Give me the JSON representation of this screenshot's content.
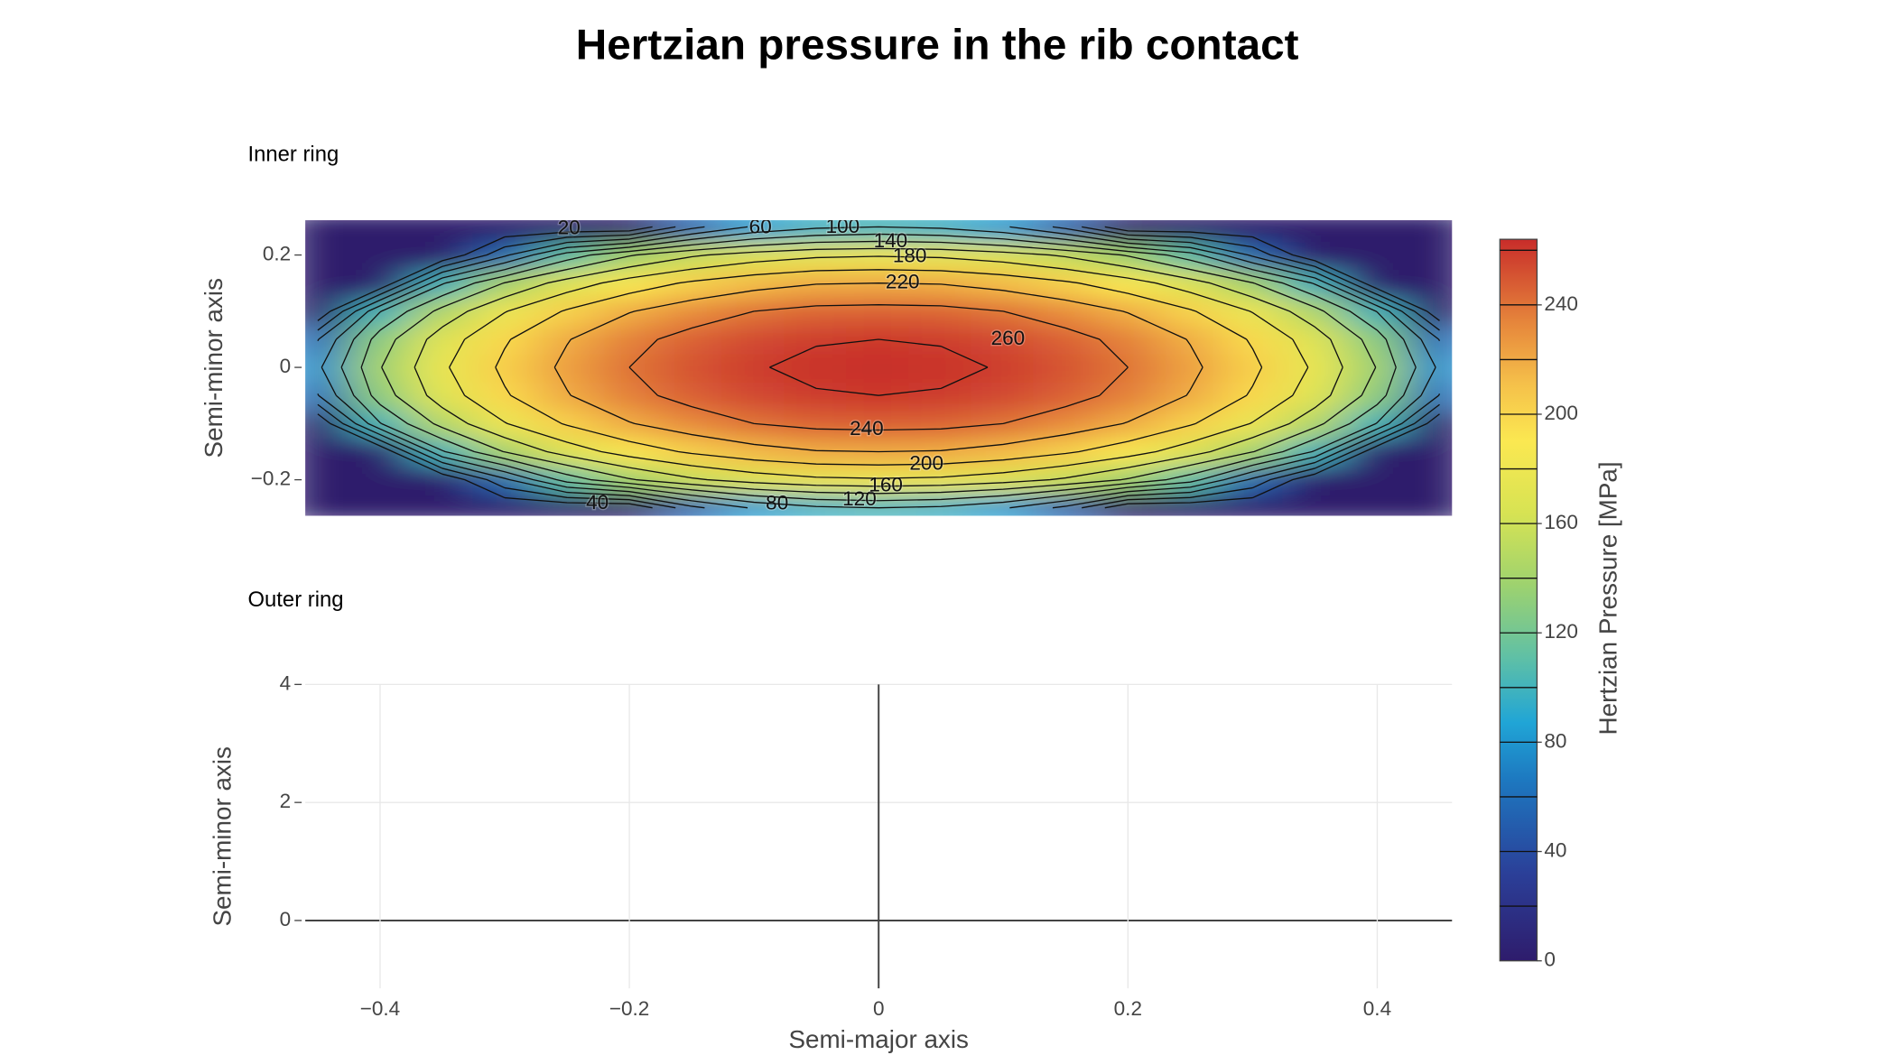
{
  "title": "Hertzian pressure in the rib contact",
  "chart_data": [
    {
      "type": "contour",
      "title": "Inner ring",
      "ylabel": "Semi-minor axis",
      "x": [
        -0.45,
        -0.4,
        -0.35,
        -0.3,
        -0.25,
        -0.2,
        -0.15,
        -0.1,
        -0.05,
        0,
        0.05,
        0.1,
        0.15,
        0.2,
        0.25,
        0.3,
        0.35,
        0.4,
        0.45
      ],
      "y": [
        -0.25,
        -0.2,
        -0.15,
        -0.1,
        -0.05,
        0,
        0.05,
        0.1,
        0.15,
        0.2,
        0.25
      ],
      "z": [
        [
          0,
          0,
          0,
          0,
          0,
          0,
          54,
          83,
          96,
          100,
          96,
          83,
          54,
          0,
          0,
          0,
          0,
          0,
          0
        ],
        [
          0,
          0,
          0,
          56,
          109,
          138,
          157,
          169,
          176,
          178,
          176,
          169,
          157,
          138,
          109,
          56,
          0,
          0,
          0
        ],
        [
          0,
          0,
          98,
          141,
          169,
          189,
          203,
          213,
          219,
          220,
          219,
          213,
          203,
          189,
          169,
          141,
          98,
          0,
          0
        ],
        [
          0,
          99,
          147,
          179,
          202,
          219,
          231,
          240,
          245,
          246,
          245,
          240,
          231,
          219,
          202,
          179,
          147,
          99,
          0
        ],
        [
          59,
          130,
          170,
          198,
          219,
          235,
          246,
          254,
          259,
          260,
          259,
          254,
          246,
          235,
          219,
          198,
          170,
          130,
          59
        ],
        [
          76,
          139,
          177,
          204,
          224,
          240,
          251,
          259,
          263,
          265,
          263,
          259,
          251,
          240,
          224,
          204,
          177,
          139,
          76
        ],
        [
          59,
          130,
          170,
          198,
          219,
          235,
          246,
          254,
          259,
          260,
          259,
          254,
          246,
          235,
          219,
          198,
          170,
          130,
          59
        ],
        [
          0,
          99,
          147,
          179,
          202,
          219,
          231,
          240,
          245,
          246,
          245,
          240,
          231,
          219,
          202,
          179,
          147,
          99,
          0
        ],
        [
          0,
          0,
          98,
          141,
          169,
          189,
          203,
          213,
          219,
          220,
          219,
          213,
          203,
          189,
          169,
          141,
          98,
          0,
          0
        ],
        [
          0,
          0,
          0,
          56,
          109,
          138,
          157,
          169,
          176,
          178,
          176,
          169,
          157,
          138,
          109,
          56,
          0,
          0,
          0
        ],
        [
          0,
          0,
          0,
          0,
          0,
          0,
          54,
          83,
          96,
          100,
          96,
          83,
          54,
          0,
          0,
          0,
          0,
          0,
          0
        ]
      ],
      "contours": {
        "levels": [
          20,
          40,
          60,
          80,
          100,
          120,
          140,
          160,
          180,
          200,
          220,
          240,
          260
        ],
        "color": "#111111"
      },
      "colorscale": [
        [
          0,
          "#2e1c6c"
        ],
        [
          0.12,
          "#2b3f98"
        ],
        [
          0.25,
          "#1d78c0"
        ],
        [
          0.33,
          "#20a5d6"
        ],
        [
          0.42,
          "#5fc0a6"
        ],
        [
          0.52,
          "#9dd26f"
        ],
        [
          0.62,
          "#d7e353"
        ],
        [
          0.72,
          "#fbe851"
        ],
        [
          0.8,
          "#f5c04a"
        ],
        [
          0.88,
          "#e7893c"
        ],
        [
          1,
          "#c82d2a"
        ]
      ],
      "colorbar": {
        "title": "Hertzian Pressure [MPa]",
        "zlim": [
          0,
          264
        ],
        "ticks": [
          0,
          40,
          80,
          120,
          160,
          200,
          240
        ]
      },
      "xlim": [
        -0.46,
        0.46
      ],
      "ylim": [
        -0.264,
        0.262
      ],
      "yticks": [
        {
          "value": -0.2,
          "label": "−0.2"
        },
        0,
        0.2
      ]
    },
    {
      "type": "scatter",
      "title": "Outer ring",
      "xlabel": "Semi-major axis",
      "ylabel": "Semi-minor axis",
      "series": [],
      "xlim": [
        -0.46,
        0.46
      ],
      "ylim": [
        -1.15,
        4
      ],
      "xticks": [
        {
          "value": -0.4,
          "label": "−0.4"
        },
        {
          "value": -0.2,
          "label": "−0.2"
        },
        0,
        0.2,
        0.4
      ],
      "yticks": [
        0,
        2,
        4
      ],
      "grid": true
    }
  ]
}
